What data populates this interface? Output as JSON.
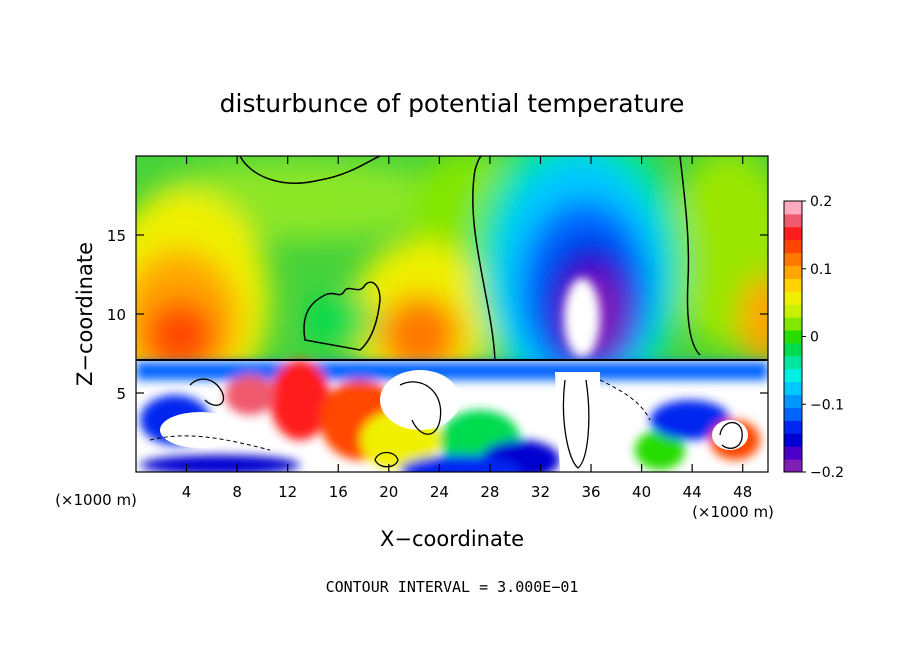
{
  "chart_data": {
    "type": "heatmap",
    "title": "disturbunce of potential temperature",
    "xlabel": "X−coordinate",
    "ylabel": "Z−coordinate",
    "x_unit": "(×1000 m)",
    "x_unit_right": "(×1000 m)",
    "xlim": [
      0,
      50
    ],
    "ylim": [
      0,
      20
    ],
    "x_ticks": [
      4,
      8,
      12,
      16,
      20,
      24,
      28,
      32,
      36,
      40,
      44,
      48
    ],
    "y_ticks": [
      5,
      10,
      15
    ],
    "footer": "CONTOUR INTERVAL = 3.000E−01",
    "colorbar": {
      "range": [
        -0.2,
        0.2
      ],
      "tick_labels": [
        "0.2",
        "0.1",
        "0",
        "−0.1",
        "−0.2"
      ],
      "tick_values": [
        0.2,
        0.1,
        0,
        -0.1,
        -0.2
      ],
      "colors": [
        "#7f1fb8",
        "#4a00c8",
        "#0000d0",
        "#0028f0",
        "#0064ff",
        "#0096ff",
        "#00c8ff",
        "#00f0e6",
        "#00e6a0",
        "#00dc50",
        "#28dc00",
        "#82e600",
        "#c8f000",
        "#f0f000",
        "#ffd200",
        "#ffa500",
        "#ff7800",
        "#ff4600",
        "#ff1e1e",
        "#f05a6e",
        "#ffaabe"
      ]
    },
    "fields": [
      {
        "name": "upper_left_warm",
        "x": 4,
        "z": 9.5,
        "value": 0.12
      },
      {
        "name": "upper_mid_warm",
        "x": 22,
        "z": 9.0,
        "value": 0.11
      },
      {
        "name": "upper_cold_plume",
        "x": 36,
        "z": 13.0,
        "value": -0.2
      },
      {
        "name": "upper_right_warm",
        "x": 49,
        "z": 10.0,
        "value": 0.08
      },
      {
        "name": "background_upper",
        "x": 14,
        "z": 16.0,
        "value": 0.0
      }
    ]
  }
}
